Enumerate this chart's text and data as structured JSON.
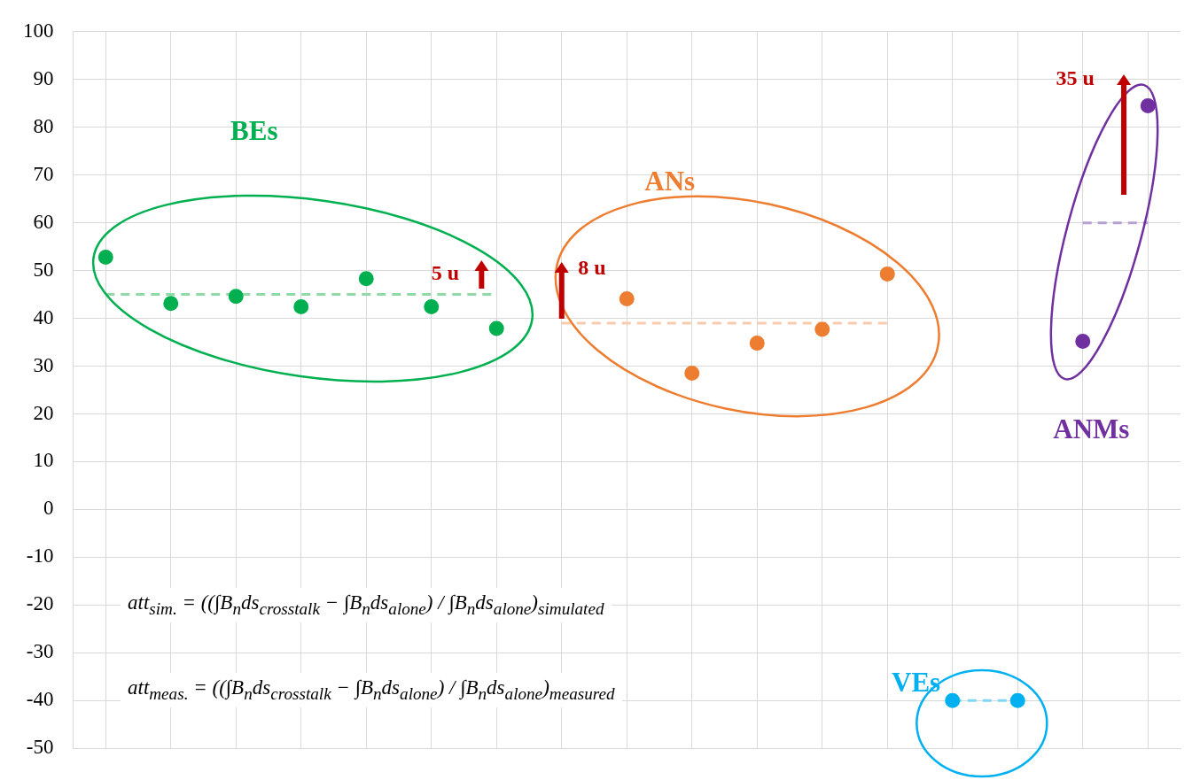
{
  "chart_data": {
    "type": "scatter",
    "categories": [
      null,
      null,
      null,
      null,
      null,
      null,
      null,
      null,
      null,
      null,
      null,
      null,
      null,
      null,
      null,
      null,
      null
    ],
    "ylim": [
      -50,
      100
    ],
    "yticks": [
      -50,
      -40,
      -30,
      -20,
      -10,
      0,
      10,
      20,
      30,
      40,
      50,
      60,
      70,
      80,
      90,
      100
    ],
    "grid": true,
    "legend": false,
    "tick_labels": "y",
    "marker": "circle",
    "series": [
      {
        "name": "BEs",
        "color": "#00b050",
        "values": [
          52.8,
          43.1,
          44.6,
          42.4,
          48.3,
          42.4,
          37.9,
          null,
          null,
          null,
          null,
          null,
          null,
          null,
          null,
          null,
          null
        ]
      },
      {
        "name": "ANs",
        "color": "#ed7d31",
        "values": [
          null,
          null,
          null,
          null,
          null,
          null,
          null,
          null,
          44.1,
          28.5,
          34.8,
          37.7,
          49.3,
          null,
          null,
          null,
          null
        ]
      },
      {
        "name": "VEs",
        "color": "#00b0f0",
        "values": [
          null,
          null,
          null,
          null,
          null,
          null,
          null,
          null,
          null,
          null,
          null,
          null,
          null,
          -40,
          -40,
          null,
          null
        ]
      },
      {
        "name": "ANMs",
        "color": "#7030a0",
        "values": [
          null,
          null,
          null,
          null,
          null,
          null,
          null,
          null,
          null,
          null,
          null,
          null,
          null,
          null,
          null,
          35.2,
          84.5
        ]
      },
      {
        "type": "line",
        "color": "#92d9a8",
        "line_style": "dashed",
        "marker": "none",
        "values": [
          45,
          45,
          45,
          45,
          45,
          45,
          45,
          null,
          null,
          null,
          null,
          null,
          null,
          null,
          null,
          null,
          null
        ]
      },
      {
        "type": "line",
        "color": "#f8cbad",
        "line_style": "dashed",
        "marker": "none",
        "values": [
          null,
          null,
          null,
          null,
          null,
          null,
          null,
          39,
          39,
          39,
          39,
          39,
          39,
          null,
          null,
          null,
          null
        ]
      },
      {
        "type": "line",
        "color": "#7fd7f7",
        "line_style": "dashed",
        "marker": "none",
        "values": [
          null,
          null,
          null,
          null,
          null,
          null,
          null,
          null,
          null,
          null,
          null,
          null,
          null,
          -40,
          -40,
          null,
          null
        ]
      },
      {
        "type": "line",
        "color": "#b7a1d3",
        "line_style": "dashed",
        "marker": "none",
        "values": [
          null,
          null,
          null,
          null,
          null,
          null,
          null,
          null,
          null,
          null,
          null,
          null,
          null,
          null,
          null,
          60,
          60
        ]
      }
    ],
    "annotations": [
      "5 u",
      "8 u",
      "35 u",
      "att$_{sim.}$ = ((∫B$_{n}$ds$_{crosstalk}$ − ∫B$_{n}$ds$_{alone}$) / ∫B$_{n}$ds$_{alone}$)$_{simulated}$",
      "att$_{meas.}$ = ((∫B$_{n}$ds$_{crosstalk}$ − ∫B$_{n}$ds$_{alone}$) / ∫B$_{n}$ds$_{alone}$)$_{measured}$"
    ]
  }
}
